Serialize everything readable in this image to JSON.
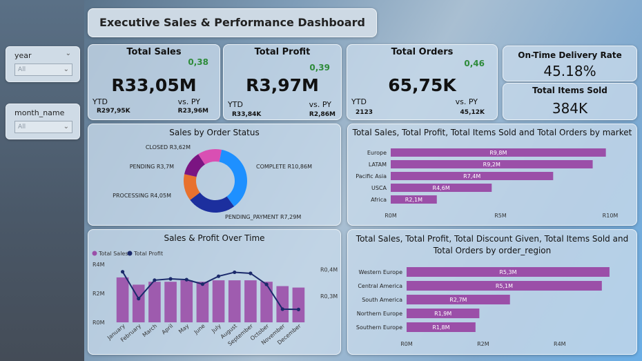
{
  "title": "Executive Sales & Performance Dashboard",
  "slicers": [
    {
      "label": "year",
      "value": "All"
    },
    {
      "label": "month_name",
      "value": "All"
    }
  ],
  "kpis": {
    "total_sales": {
      "name": "Total Sales",
      "change": "0,38",
      "value": "R33,05M",
      "ytd_label": "YTD",
      "vs_label": "vs. PY",
      "ytd_value": "R297,95K",
      "py_value": "R23,96M"
    },
    "total_profit": {
      "name": "Total Profit",
      "change": "0,39",
      "value": "R3,97M",
      "ytd_label": "YTD",
      "vs_label": "vs. PY",
      "ytd_value": "R33,84K",
      "py_value": "R2,86M"
    },
    "total_orders": {
      "name": "Total Orders",
      "change": "0,46",
      "value": "65,75K",
      "ytd_label": "YTD",
      "vs_label": "vs. PY",
      "ytd_value": "2123",
      "py_value": "45,12K"
    }
  },
  "on_time": {
    "name": "On-Time Delivery Rate",
    "value": "45.18%"
  },
  "items_sold": {
    "name": "Total Items Sold",
    "value": "384K"
  },
  "colors": {
    "bar": "#9b4fa8",
    "line": "#1b2a6b",
    "complete": "#1e90ff",
    "pending_payment": "#1c2f9e",
    "processing": "#e8712e",
    "pending": "#7b1582",
    "closed": "#d94fb3"
  },
  "chart_data": [
    {
      "type": "pie",
      "title": "Sales by Order Status",
      "labels": [
        "COMPLETE",
        "PENDING_PAYMENT",
        "PROCESSING",
        "PENDING",
        "CLOSED"
      ],
      "display": [
        "COMPLETE R10,86M",
        "PENDING_PAYMENT R7,29M",
        "PROCESSING R4,05M",
        "PENDING R3,7M",
        "CLOSED R3,62M"
      ],
      "values": [
        10.86,
        7.29,
        4.05,
        3.7,
        3.62
      ]
    },
    {
      "type": "bar",
      "title": "Total Sales, Total Profit, Total Items Sold and Total Orders by market",
      "categories": [
        "Europe",
        "LATAM",
        "Pacific Asia",
        "USCA",
        "Africa"
      ],
      "values": [
        9.8,
        9.2,
        7.4,
        4.6,
        2.1
      ],
      "labels": [
        "R9,8M",
        "R9,2M",
        "R7,4M",
        "R4,6M",
        "R2,1M"
      ],
      "xticks": [
        "R0M",
        "R5M",
        "R10M"
      ],
      "xlim": [
        0,
        10
      ]
    },
    {
      "type": "bar",
      "title": "Sales & Profit Over Time",
      "legend": [
        "Total Sales",
        "Total Profit"
      ],
      "categories": [
        "January",
        "February",
        "March",
        "April",
        "May",
        "June",
        "July",
        "August",
        "September",
        "October",
        "November",
        "December"
      ],
      "series": [
        {
          "name": "Total Sales",
          "values": [
            3.1,
            2.6,
            2.8,
            2.8,
            2.9,
            2.8,
            2.9,
            2.9,
            2.9,
            2.8,
            2.5,
            2.4
          ]
        },
        {
          "name": "Total Profit",
          "values": [
            0.392,
            0.29,
            0.36,
            0.365,
            0.362,
            0.345,
            0.375,
            0.39,
            0.386,
            0.344,
            0.25,
            0.249
          ]
        }
      ],
      "y_left_ticks": [
        "R4M",
        "R2M",
        "R0M"
      ],
      "y_right_ticks": [
        "R0,4M",
        "R0,3M"
      ],
      "ylim_left": [
        0,
        4
      ],
      "ylim_right": [
        0.2,
        0.42
      ]
    },
    {
      "type": "bar",
      "title": "Total Sales, Total Profit, Total Discount Given, Total Items Sold and Total Orders by order_region",
      "categories": [
        "Western Europe",
        "Central America",
        "South America",
        "Northern Europe",
        "Southern Europe"
      ],
      "values": [
        5.3,
        5.1,
        2.7,
        1.9,
        1.8
      ],
      "labels": [
        "R5,3M",
        "R5,1M",
        "R2,7M",
        "R1,9M",
        "R1,8M"
      ],
      "xticks": [
        "R0M",
        "R2M",
        "R4M"
      ],
      "xlim": [
        0,
        5.5
      ]
    }
  ]
}
